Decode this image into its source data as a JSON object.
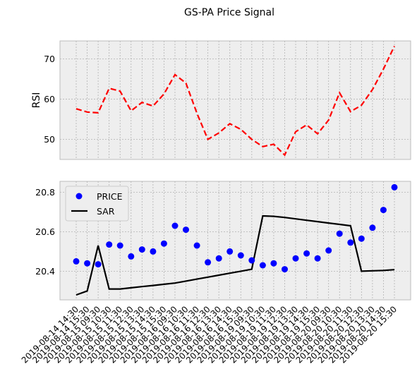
{
  "title": "GS-PA Price Signal",
  "chart_data": [
    {
      "type": "line",
      "ylabel": "RSI",
      "ylim": [
        45,
        74.5
      ],
      "yticks": [
        50,
        60,
        70
      ],
      "grid": true,
      "series": [
        {
          "values": [
            57.6,
            56.8,
            56.6,
            62.7,
            62.0,
            57.1,
            59.2,
            58.3,
            61.3,
            66.1,
            64.0,
            56.5,
            50.0,
            51.6,
            53.9,
            52.5,
            50.0,
            48.2,
            48.8,
            46.1,
            51.9,
            53.6,
            51.4,
            54.8,
            61.6,
            56.9,
            58.5,
            62.4,
            67.5,
            73.2
          ],
          "color": "#ff0000",
          "dash": "dashed"
        }
      ]
    },
    {
      "type": "line",
      "ylim": [
        20.255,
        20.855
      ],
      "yticks": [
        "20.4",
        "20.6",
        "20.8"
      ],
      "grid": true,
      "legend_position": "top-left",
      "x": [
        "2019-08-14 14:30",
        "2019-08-14 15:30",
        "2019-08-15 09:30",
        "2019-08-15 10:30",
        "2019-08-15 11:30",
        "2019-08-15 12:30",
        "2019-08-15 13:30",
        "2019-08-15 14:30",
        "2019-08-15 15:30",
        "2019-08-16 09:30",
        "2019-08-16 10:30",
        "2019-08-16 11:30",
        "2019-08-16 12:30",
        "2019-08-16 13:30",
        "2019-08-16 14:30",
        "2019-08-16 15:30",
        "2019-08-19 09:30",
        "2019-08-19 10:30",
        "2019-08-19 11:30",
        "2019-08-19 12:30",
        "2019-08-19 13:30",
        "2019-08-19 14:30",
        "2019-08-19 15:30",
        "2019-08-20 09:30",
        "2019-08-20 10:30",
        "2019-08-20 11:30",
        "2019-08-20 12:30",
        "2019-08-20 13:30",
        "2019-08-20 14:30",
        "2019-08-20 15:30"
      ],
      "series": [
        {
          "name": "PRICE",
          "kind": "scatter",
          "color": "#0000ff",
          "values": [
            20.45,
            20.44,
            20.435,
            20.535,
            20.53,
            20.475,
            20.51,
            20.5,
            20.54,
            20.63,
            20.61,
            20.53,
            20.445,
            20.465,
            20.5,
            20.48,
            20.455,
            20.43,
            20.44,
            20.41,
            20.465,
            20.49,
            20.465,
            20.505,
            20.59,
            20.545,
            20.565,
            20.62,
            20.71,
            20.825
          ]
        },
        {
          "name": "SAR",
          "kind": "line",
          "color": "#000000",
          "values": [
            20.28,
            20.3,
            20.53,
            20.31,
            20.31,
            20.316,
            20.322,
            20.328,
            20.334,
            20.34,
            20.35,
            20.36,
            20.37,
            20.38,
            20.39,
            20.4,
            20.41,
            20.68,
            20.678,
            20.672,
            20.665,
            20.658,
            20.651,
            20.644,
            20.637,
            20.63,
            20.4,
            20.402,
            20.404,
            20.408
          ]
        }
      ]
    }
  ]
}
